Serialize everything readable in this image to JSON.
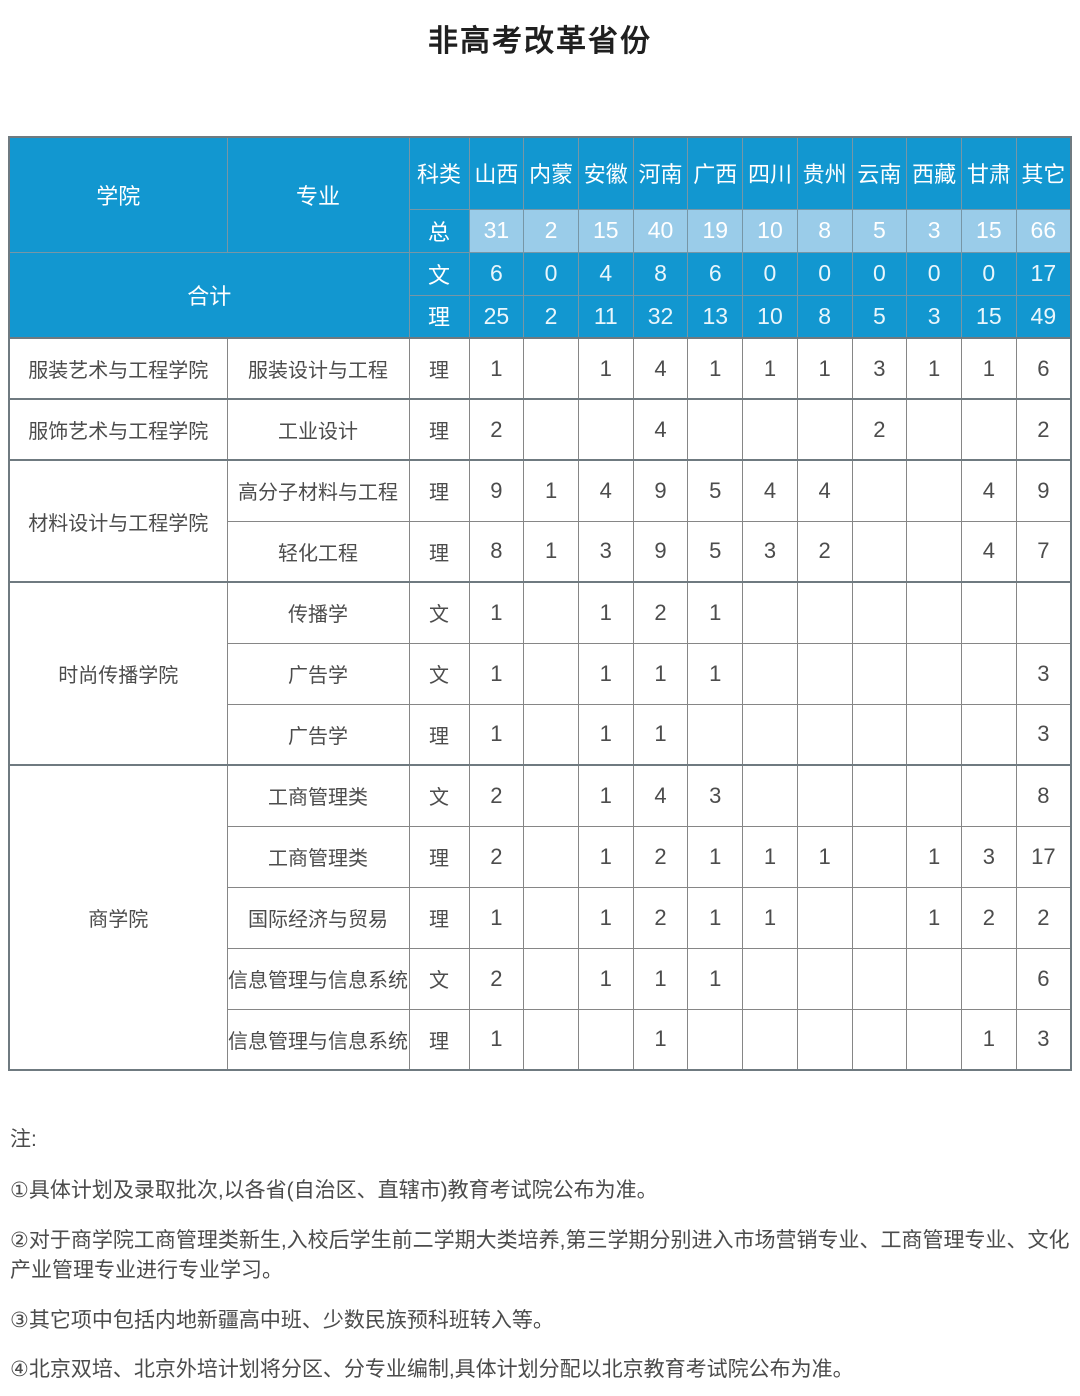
{
  "title": "非高考改革省份",
  "colors": {
    "header_blue": "#1297d0",
    "total_light_blue": "#9acce9",
    "grid_gray": "#868686",
    "body_text": "#4c4c4c"
  },
  "table": {
    "college_header": "学院",
    "major_header": "专业",
    "subject_header": "科类",
    "provinces": [
      "山西",
      "内蒙",
      "安徽",
      "河南",
      "广西",
      "四川",
      "贵州",
      "云南",
      "西藏",
      "甘肃",
      "其它"
    ],
    "total_label": "总",
    "sum_label": "合计",
    "wen_label": "文",
    "li_label": "理",
    "totals": {
      "total": [
        "31",
        "2",
        "15",
        "40",
        "19",
        "10",
        "8",
        "5",
        "3",
        "15",
        "66"
      ],
      "wen": [
        "6",
        "0",
        "4",
        "8",
        "6",
        "0",
        "0",
        "0",
        "0",
        "0",
        "17"
      ],
      "li": [
        "25",
        "2",
        "11",
        "32",
        "13",
        "10",
        "8",
        "5",
        "3",
        "15",
        "49"
      ]
    },
    "groups": [
      {
        "college": "服装艺术与工程学院",
        "rows": [
          {
            "major": "服装设计与工程",
            "subject": "理",
            "values": [
              "1",
              "",
              "1",
              "4",
              "1",
              "1",
              "1",
              "3",
              "1",
              "1",
              "6"
            ]
          }
        ]
      },
      {
        "college": "服饰艺术与工程学院",
        "rows": [
          {
            "major": "工业设计",
            "subject": "理",
            "values": [
              "2",
              "",
              "",
              "4",
              "",
              "",
              "",
              "2",
              "",
              "",
              "2"
            ]
          }
        ]
      },
      {
        "college": "材料设计与工程学院",
        "rows": [
          {
            "major": "高分子材料与工程",
            "subject": "理",
            "values": [
              "9",
              "1",
              "4",
              "9",
              "5",
              "4",
              "4",
              "",
              "",
              "4",
              "9"
            ]
          },
          {
            "major": "轻化工程",
            "subject": "理",
            "values": [
              "8",
              "1",
              "3",
              "9",
              "5",
              "3",
              "2",
              "",
              "",
              "4",
              "7"
            ]
          }
        ]
      },
      {
        "college": "时尚传播学院",
        "rows": [
          {
            "major": "传播学",
            "subject": "文",
            "values": [
              "1",
              "",
              "1",
              "2",
              "1",
              "",
              "",
              "",
              "",
              "",
              ""
            ]
          },
          {
            "major": "广告学",
            "subject": "文",
            "values": [
              "1",
              "",
              "1",
              "1",
              "1",
              "",
              "",
              "",
              "",
              "",
              "3"
            ]
          },
          {
            "major": "广告学",
            "subject": "理",
            "values": [
              "1",
              "",
              "1",
              "1",
              "",
              "",
              "",
              "",
              "",
              "",
              "3"
            ]
          }
        ]
      },
      {
        "college": "商学院",
        "rows": [
          {
            "major": "工商管理类",
            "subject": "文",
            "values": [
              "2",
              "",
              "1",
              "4",
              "3",
              "",
              "",
              "",
              "",
              "",
              "8"
            ]
          },
          {
            "major": "工商管理类",
            "subject": "理",
            "values": [
              "2",
              "",
              "1",
              "2",
              "1",
              "1",
              "1",
              "",
              "1",
              "3",
              "17"
            ]
          },
          {
            "major": "国际经济与贸易",
            "subject": "理",
            "values": [
              "1",
              "",
              "1",
              "2",
              "1",
              "1",
              "",
              "",
              "1",
              "2",
              "2"
            ]
          },
          {
            "major": "信息管理与信息系统",
            "subject": "文",
            "values": [
              "2",
              "",
              "1",
              "1",
              "1",
              "",
              "",
              "",
              "",
              "",
              "6"
            ]
          },
          {
            "major": "信息管理与信息系统",
            "subject": "理",
            "values": [
              "1",
              "",
              "",
              "1",
              "",
              "",
              "",
              "",
              "",
              "1",
              "3"
            ]
          }
        ]
      }
    ]
  },
  "notes": {
    "label": "注:",
    "items": [
      "①具体计划及录取批次,以各省(自治区、直辖市)教育考试院公布为准。",
      "②对于商学院工商管理类新生,入校后学生前二学期大类培养,第三学期分别进入市场营销专业、工商管理专业、文化产业管理专业进行专业学习。",
      "③其它项中包括内地新疆高中班、少数民族预科班转入等。",
      "④北京双培、北京外培计划将分区、分专业编制,具体计划分配以北京教育考试院公布为准。"
    ]
  }
}
